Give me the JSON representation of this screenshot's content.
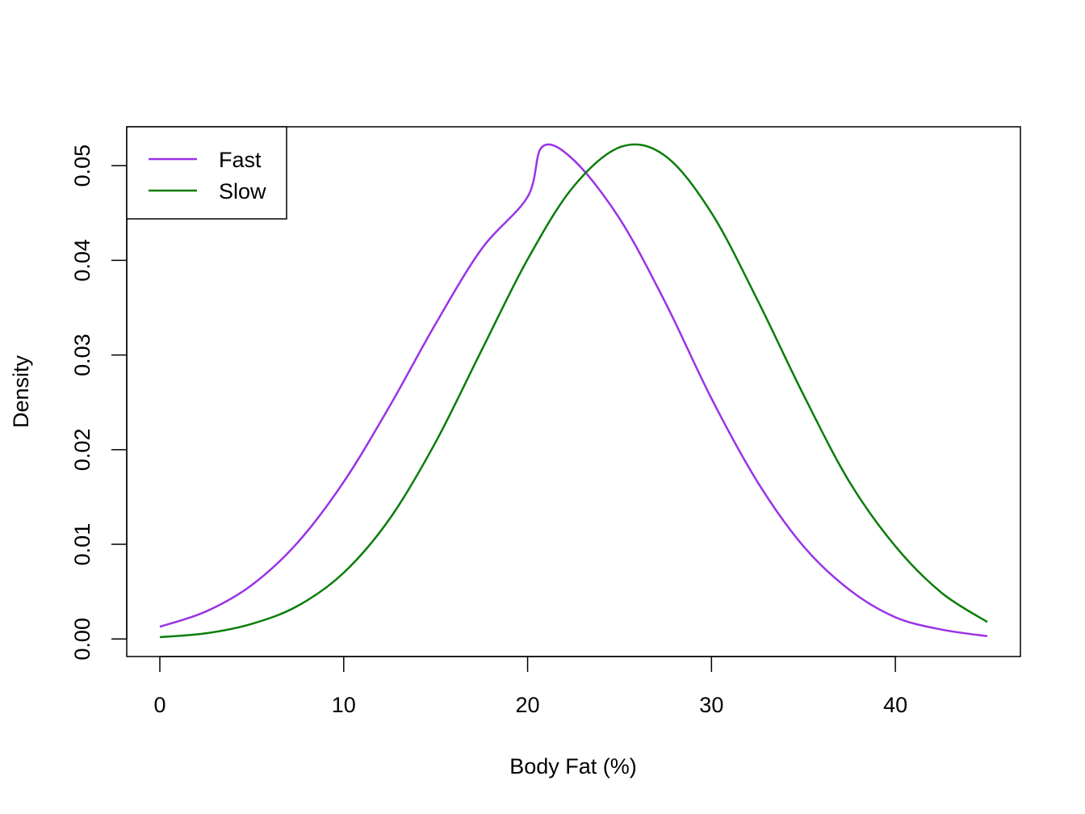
{
  "chart_data": {
    "type": "line",
    "title": "",
    "xlabel": "Body Fat (%)",
    "ylabel": "Density",
    "xlim": [
      -1.8,
      46.8
    ],
    "ylim": [
      -0.00185,
      0.0541
    ],
    "x_ticks": [
      0,
      10,
      20,
      30,
      40
    ],
    "x_tick_labels": [
      "0",
      "10",
      "20",
      "30",
      "40"
    ],
    "y_ticks": [
      0.0,
      0.01,
      0.02,
      0.03,
      0.04,
      0.05
    ],
    "y_tick_labels": [
      "0.00",
      "0.01",
      "0.02",
      "0.03",
      "0.04",
      "0.05"
    ],
    "grid": false,
    "legend_position": "top-left",
    "series": [
      {
        "name": "Fast",
        "color": "#9a32e6",
        "x": [
          0,
          2.5,
          5,
          7.5,
          10,
          12.5,
          15,
          17.5,
          20,
          20.8,
          22.5,
          25,
          27.5,
          30,
          32.5,
          35,
          37.5,
          40,
          42.5,
          45
        ],
        "y": [
          0.0013,
          0.0029,
          0.0057,
          0.0102,
          0.0166,
          0.0246,
          0.0333,
          0.0412,
          0.0467,
          0.052,
          0.0506,
          0.0444,
          0.0355,
          0.0254,
          0.0166,
          0.0098,
          0.0052,
          0.0023,
          0.001,
          0.0003
        ]
      },
      {
        "name": "Slow",
        "color": "#0a7d0a",
        "x": [
          0,
          2.5,
          5,
          7.5,
          10,
          12.5,
          15,
          17.5,
          20,
          22.5,
          25.1,
          27.5,
          30,
          32.5,
          35,
          37.5,
          40,
          42.5,
          45
        ],
        "y": [
          0.0002,
          0.0006,
          0.0016,
          0.0035,
          0.007,
          0.0127,
          0.0208,
          0.0305,
          0.0401,
          0.0478,
          0.052,
          0.051,
          0.045,
          0.0358,
          0.0258,
          0.0166,
          0.0098,
          0.0049,
          0.0018
        ]
      }
    ]
  }
}
